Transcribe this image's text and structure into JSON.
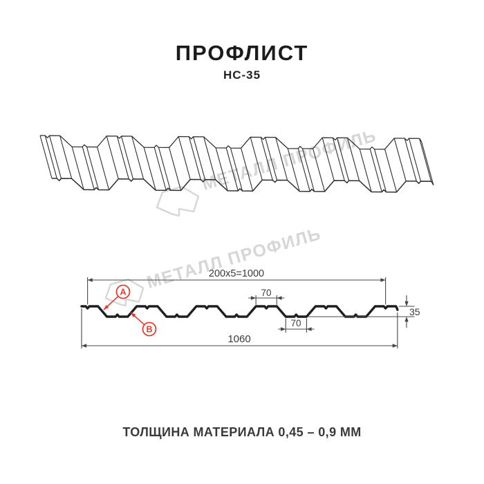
{
  "header": {
    "title": "ПРОФЛИСТ",
    "subtitle": "НС-35"
  },
  "watermark": {
    "brand": "МЕТАЛЛ ПРОФИЛЬ"
  },
  "section": {
    "dim_working_width": "200x5=1000",
    "dim_crest_width": "70",
    "dim_valley_width": "70",
    "dim_total_width": "1060",
    "dim_height": "35",
    "marker_a": "A",
    "marker_b": "B",
    "profile_mm": {
      "module_width": 200,
      "modules": 5,
      "working_width": 1000,
      "total_width": 1060,
      "height": 35,
      "crest_width": 70,
      "valley_width": 70,
      "slope_run": 30
    }
  },
  "footer": {
    "thickness_note": "ТОЛЩИНА МАТЕРИАЛА 0,45 – 0,9 ММ"
  },
  "colors": {
    "ink": "#1f1f1f",
    "iso_line": "#2d2d2d",
    "dimension": "#454545",
    "accent_red": "#e23b30",
    "watermark_gray": "#d6d6d6"
  }
}
